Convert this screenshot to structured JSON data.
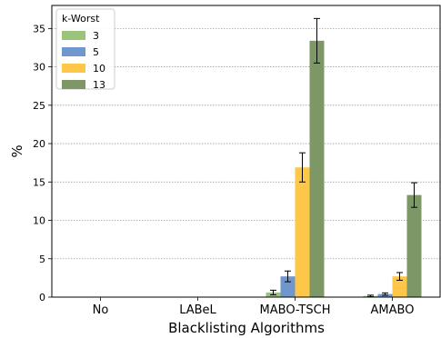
{
  "chart_data": {
    "type": "bar",
    "title": "",
    "xlabel": "Blacklisting Algorithms",
    "ylabel": "%",
    "categories": [
      "No",
      "LABeL",
      "MABO-TSCH",
      "AMABO"
    ],
    "ylim": [
      0,
      38
    ],
    "yticks": [
      0,
      5,
      10,
      15,
      20,
      25,
      30,
      35
    ],
    "grid": "horizontal-dotted",
    "legend": {
      "title": "k-Worst",
      "placement": "top-left"
    },
    "series": [
      {
        "name": "3",
        "color": "#9ac37c",
        "values": [
          0.0,
          0.0,
          0.6,
          0.15
        ],
        "errors": [
          0.0,
          0.0,
          0.3,
          0.1
        ]
      },
      {
        "name": "5",
        "color": "#6f96cd",
        "values": [
          0.0,
          0.0,
          2.7,
          0.4
        ],
        "errors": [
          0.0,
          0.0,
          0.7,
          0.15
        ]
      },
      {
        "name": "10",
        "color": "#fec747",
        "values": [
          0.0,
          0.0,
          16.9,
          2.7
        ],
        "errors": [
          0.0,
          0.0,
          1.9,
          0.5
        ]
      },
      {
        "name": "13",
        "color": "#7d9766",
        "values": [
          0.0,
          0.0,
          33.4,
          13.3
        ],
        "errors": [
          0.0,
          0.0,
          2.9,
          1.6
        ]
      }
    ]
  }
}
